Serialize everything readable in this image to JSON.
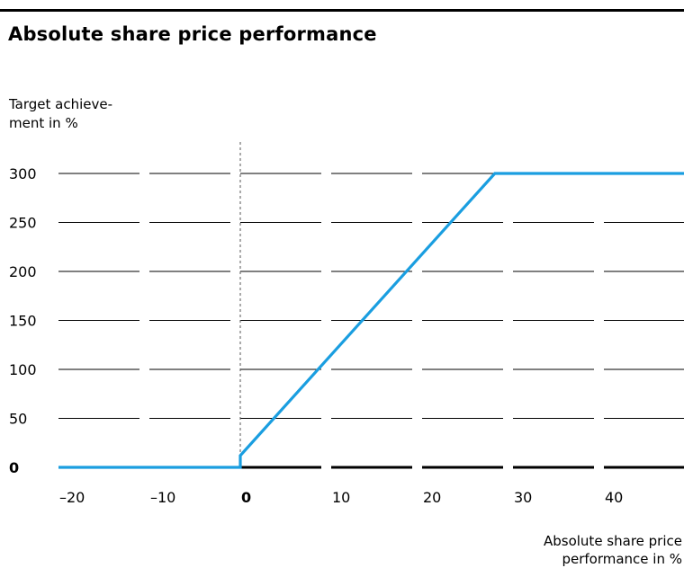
{
  "chart_data": {
    "type": "line",
    "title": "Absolute share price performance",
    "ylabel_line1": "Target achieve-",
    "ylabel_line2": "ment in %",
    "xlabel_line1": "Absolute share price",
    "xlabel_line2": "performance in %",
    "x_ticks": [
      "-20",
      "-10",
      "0",
      "10",
      "20",
      "30",
      "40"
    ],
    "x_tick_values": [
      -20,
      -10,
      0,
      10,
      20,
      30,
      40
    ],
    "y_ticks": [
      "0",
      "50",
      "100",
      "150",
      "200",
      "250",
      "300"
    ],
    "y_tick_values": [
      0,
      50,
      100,
      150,
      200,
      250,
      300
    ],
    "xlim": [
      -20,
      50
    ],
    "ylim": [
      0,
      300
    ],
    "grid": true,
    "reference_line_x": 0,
    "series": [
      {
        "color": "#1a9ee0",
        "points": [
          {
            "x": -20,
            "y": 0
          },
          {
            "x": 0,
            "y": 0
          },
          {
            "x": 0,
            "y": 12
          },
          {
            "x": 28,
            "y": 300
          },
          {
            "x": 50,
            "y": 300
          }
        ]
      }
    ]
  },
  "colors": {
    "line": "#1a9ee0",
    "grid": "#000000",
    "reference": "#555555"
  }
}
